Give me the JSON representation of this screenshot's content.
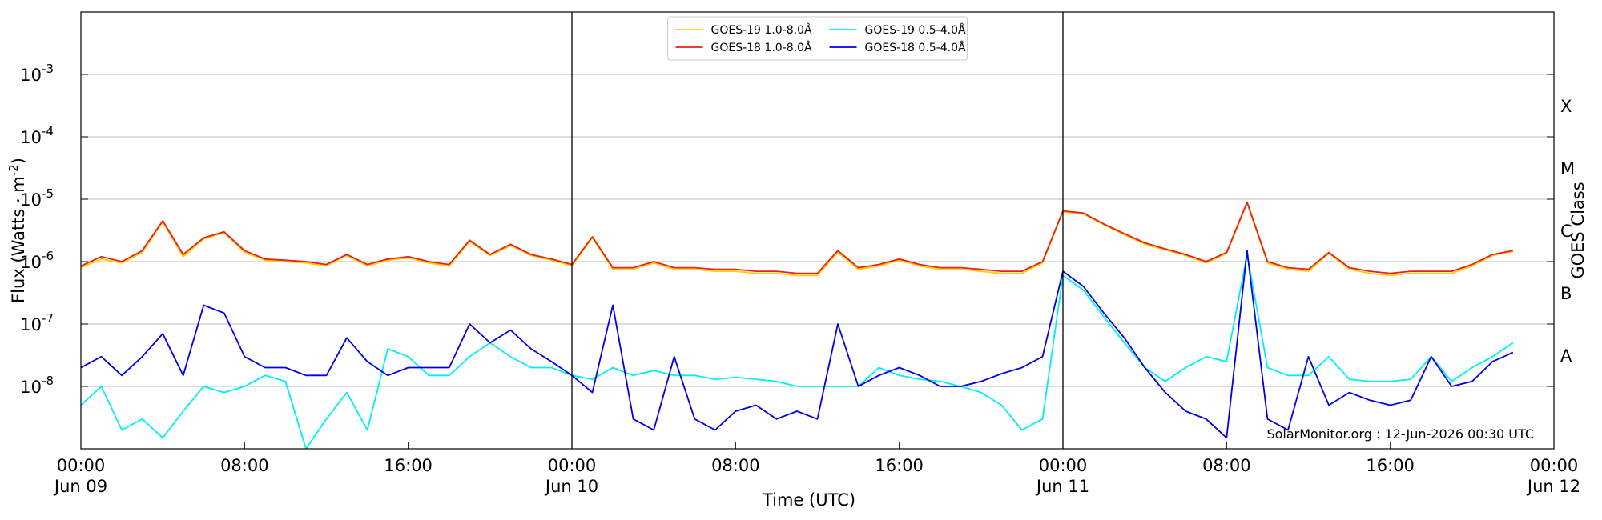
{
  "chart_data": {
    "type": "line",
    "ylabel": "Flux (Watts · m",
    "ylabel_exp": "-2",
    "ylabel_end": ")",
    "xlabel": "Time (UTC)",
    "y2label": "GOES Class",
    "annotation": "SolarMonitor.org : 12-Jun-2026 00:30 UTC",
    "log_y": true,
    "grid": true,
    "legend": "upper center",
    "xlim": [
      0,
      72
    ],
    "xticks": [
      {
        "value": 0,
        "label": "00:00",
        "date": "Jun 09"
      },
      {
        "value": 8,
        "label": "08:00"
      },
      {
        "value": 16,
        "label": "16:00"
      },
      {
        "value": 24,
        "label": "00:00",
        "date": "Jun 10"
      },
      {
        "value": 32,
        "label": "08:00"
      },
      {
        "value": 40,
        "label": "16:00"
      },
      {
        "value": 48,
        "label": "00:00",
        "date": "Jun 11"
      },
      {
        "value": 56,
        "label": "08:00"
      },
      {
        "value": 64,
        "label": "16:00"
      },
      {
        "value": 72,
        "label": "00:00",
        "date": "Jun 12"
      }
    ],
    "day_lines": [
      24,
      48
    ],
    "ylim": [
      1e-09,
      0.01
    ],
    "yticks": [
      {
        "value": 1e-08,
        "label": "10",
        "exp": "-8"
      },
      {
        "value": 1e-07,
        "label": "10",
        "exp": "-7"
      },
      {
        "value": 1e-06,
        "label": "10",
        "exp": "-6"
      },
      {
        "value": 1e-05,
        "label": "10",
        "exp": "-5"
      },
      {
        "value": 0.0001,
        "label": "10",
        "exp": "-4"
      },
      {
        "value": 0.001,
        "label": "10",
        "exp": "-3"
      }
    ],
    "goes_classes": [
      {
        "value": 3.162e-08,
        "label": "A"
      },
      {
        "value": 3.162e-07,
        "label": "B"
      },
      {
        "value": 3.162e-06,
        "label": "C"
      },
      {
        "value": 3.162e-05,
        "label": "M"
      },
      {
        "value": 0.0003162,
        "label": "X"
      }
    ],
    "x": [
      0,
      1,
      2,
      3,
      4,
      5,
      6,
      7,
      8,
      9,
      10,
      11,
      12,
      13,
      14,
      15,
      16,
      17,
      18,
      19,
      20,
      21,
      22,
      23,
      24,
      25,
      26,
      27,
      28,
      29,
      30,
      31,
      32,
      33,
      34,
      35,
      36,
      37,
      38,
      39,
      40,
      41,
      42,
      43,
      44,
      45,
      46,
      47,
      48,
      49,
      50,
      51,
      52,
      53,
      54,
      55,
      56,
      57,
      58,
      59,
      60,
      61,
      62,
      63,
      64,
      65,
      66,
      67,
      68,
      69,
      70
    ],
    "series": [
      {
        "name": "GOES-19 1.0-8.0Å",
        "color": "#ffcc00",
        "values": [
          8e-07,
          1.1e-06,
          9.5e-07,
          1.4e-06,
          4.3e-06,
          1.2e-06,
          2.3e-06,
          2.9e-06,
          1.4e-06,
          1.05e-06,
          1e-06,
          9.5e-07,
          8.5e-07,
          1.25e-06,
          8.5e-07,
          1.05e-06,
          1.15e-06,
          9.5e-07,
          8.5e-07,
          2.1e-06,
          1.25e-06,
          1.8e-06,
          1.25e-06,
          1.05e-06,
          8.5e-07,
          2.4e-06,
          7.5e-07,
          7.5e-07,
          9.5e-07,
          7.5e-07,
          7.5e-07,
          7e-07,
          7e-07,
          6.5e-07,
          6.5e-07,
          6e-07,
          6e-07,
          1.4e-06,
          7.5e-07,
          8.5e-07,
          1.05e-06,
          8.5e-07,
          7.5e-07,
          7.5e-07,
          7e-07,
          6.5e-07,
          6.5e-07,
          9.5e-07,
          6.3e-06,
          5.8e-06,
          3.9e-06,
          2.7e-06,
          1.9e-06,
          1.55e-06,
          1.25e-06,
          9.5e-07,
          1.35e-06,
          8.6e-06,
          9.5e-07,
          7.5e-07,
          7e-07,
          1.35e-06,
          7.5e-07,
          6.5e-07,
          6e-07,
          6.5e-07,
          6.5e-07,
          6.5e-07,
          8.5e-07,
          1.25e-06,
          1.45e-06
        ]
      },
      {
        "name": "GOES-18 1.0-8.0Å",
        "color": "#e8201a",
        "values": [
          8.5e-07,
          1.2e-06,
          1e-06,
          1.5e-06,
          4.5e-06,
          1.3e-06,
          2.4e-06,
          3e-06,
          1.5e-06,
          1.1e-06,
          1.05e-06,
          1e-06,
          9e-07,
          1.3e-06,
          9e-07,
          1.1e-06,
          1.2e-06,
          1e-06,
          9e-07,
          2.2e-06,
          1.3e-06,
          1.9e-06,
          1.3e-06,
          1.1e-06,
          9e-07,
          2.5e-06,
          8e-07,
          8e-07,
          1e-06,
          8e-07,
          8e-07,
          7.5e-07,
          7.5e-07,
          7e-07,
          7e-07,
          6.5e-07,
          6.5e-07,
          1.5e-06,
          8e-07,
          9e-07,
          1.1e-06,
          9e-07,
          8e-07,
          8e-07,
          7.5e-07,
          7e-07,
          7e-07,
          1e-06,
          6.5e-06,
          6e-06,
          4e-06,
          2.8e-06,
          2e-06,
          1.6e-06,
          1.3e-06,
          1e-06,
          1.4e-06,
          9e-06,
          1e-06,
          8e-07,
          7.5e-07,
          1.4e-06,
          8e-07,
          7e-07,
          6.5e-07,
          7e-07,
          7e-07,
          7e-07,
          9e-07,
          1.3e-06,
          1.5e-06
        ]
      },
      {
        "name": "GOES-19 0.5-4.0Å",
        "color": "#00f0f0",
        "values": [
          5e-09,
          1e-08,
          2e-09,
          3e-09,
          1.5e-09,
          4e-09,
          1e-08,
          8e-09,
          1e-08,
          1.5e-08,
          1.2e-08,
          1e-09,
          3e-09,
          8e-09,
          2e-09,
          4e-08,
          3e-08,
          1.5e-08,
          1.5e-08,
          3e-08,
          5e-08,
          3e-08,
          2e-08,
          2e-08,
          1.5e-08,
          1.3e-08,
          2e-08,
          1.5e-08,
          1.8e-08,
          1.5e-08,
          1.5e-08,
          1.3e-08,
          1.4e-08,
          1.3e-08,
          1.2e-08,
          1e-08,
          1e-08,
          1e-08,
          1e-08,
          2e-08,
          1.5e-08,
          1.3e-08,
          1.2e-08,
          1e-08,
          8e-09,
          5e-09,
          2e-09,
          3e-09,
          6e-07,
          3.5e-07,
          1.3e-07,
          5e-08,
          2e-08,
          1.2e-08,
          2e-08,
          3e-08,
          2.5e-08,
          1.3e-06,
          2e-08,
          1.5e-08,
          1.5e-08,
          3e-08,
          1.3e-08,
          1.2e-08,
          1.2e-08,
          1.3e-08,
          3e-08,
          1.2e-08,
          2e-08,
          3e-08,
          5e-08
        ]
      },
      {
        "name": "GOES-18 0.5-4.0Å",
        "color": "#0000e8",
        "values": [
          2e-08,
          3e-08,
          1.5e-08,
          3e-08,
          7e-08,
          1.5e-08,
          2e-07,
          1.5e-07,
          3e-08,
          2e-08,
          2e-08,
          1.5e-08,
          1.5e-08,
          6e-08,
          2.5e-08,
          1.5e-08,
          2e-08,
          2e-08,
          2e-08,
          1e-07,
          5e-08,
          8e-08,
          4e-08,
          2.5e-08,
          1.5e-08,
          8e-09,
          2e-07,
          3e-09,
          2e-09,
          3e-08,
          3e-09,
          2e-09,
          4e-09,
          5e-09,
          3e-09,
          4e-09,
          3e-09,
          1e-07,
          1e-08,
          1.5e-08,
          2e-08,
          1.5e-08,
          1e-08,
          1e-08,
          1.2e-08,
          1.6e-08,
          2e-08,
          3e-08,
          7e-07,
          4e-07,
          1.5e-07,
          6e-08,
          2e-08,
          8e-09,
          4e-09,
          3e-09,
          1.5e-09,
          1.5e-06,
          3e-09,
          2e-09,
          3e-08,
          5e-09,
          8e-09,
          6e-09,
          5e-09,
          6e-09,
          3e-08,
          1e-08,
          1.2e-08,
          2.5e-08,
          3.5e-08
        ]
      }
    ]
  }
}
